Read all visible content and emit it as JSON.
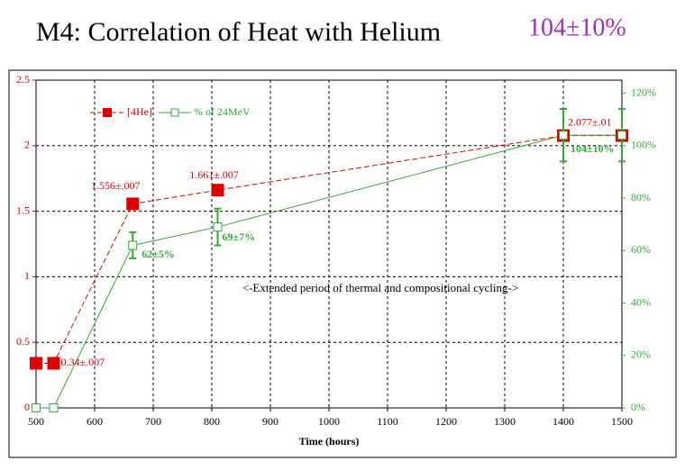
{
  "chart_data": {
    "type": "line",
    "title": "M4: Correlation of Heat with Helium",
    "callout": "104±10%",
    "x_label": "Time (hours)",
    "annotation": "<-Extended period of thermal and compositional cycling->",
    "x": [
      500,
      530,
      665,
      810,
      1400,
      1500
    ],
    "xlim": [
      500,
      1500
    ],
    "xticks": [
      500,
      600,
      700,
      800,
      900,
      1000,
      1100,
      1200,
      1300,
      1400,
      1500
    ],
    "ylim": [
      0,
      2.5
    ],
    "yticks": [
      0,
      0.5,
      1,
      1.5,
      2,
      2.5
    ],
    "y2lim": [
      0,
      125
    ],
    "y2ticks": [
      {
        "value": 0,
        "label": "0%"
      },
      {
        "value": 20,
        "label": "20%"
      },
      {
        "value": 40,
        "label": "40%"
      },
      {
        "value": 60,
        "label": "60%"
      },
      {
        "value": 80,
        "label": "80%"
      },
      {
        "value": 100,
        "label": "100%"
      },
      {
        "value": 120,
        "label": "120%"
      }
    ],
    "grid": true,
    "legend": "top-left",
    "series": [
      {
        "name": "[4He]",
        "color": "#dd0000",
        "marker": "filled-square",
        "dashed": true,
        "values": [
          0.34,
          0.34,
          1.556,
          1.661,
          2.077,
          2.077
        ],
        "value_labels": [
          null,
          "0.34±.007",
          "1.556±.007",
          "1.661±.007",
          "2.077±.01",
          null
        ]
      },
      {
        "name": "% of 24MeV",
        "color": "#33aa33",
        "marker": "open-square",
        "dashed": false,
        "axis": "y2",
        "values": [
          0,
          0,
          62,
          69,
          104,
          104
        ],
        "errors": [
          1,
          1,
          5,
          7,
          10,
          10
        ],
        "value_labels": [
          null,
          null,
          "62±5%",
          "69±7%",
          "104±10%",
          null
        ]
      }
    ]
  }
}
